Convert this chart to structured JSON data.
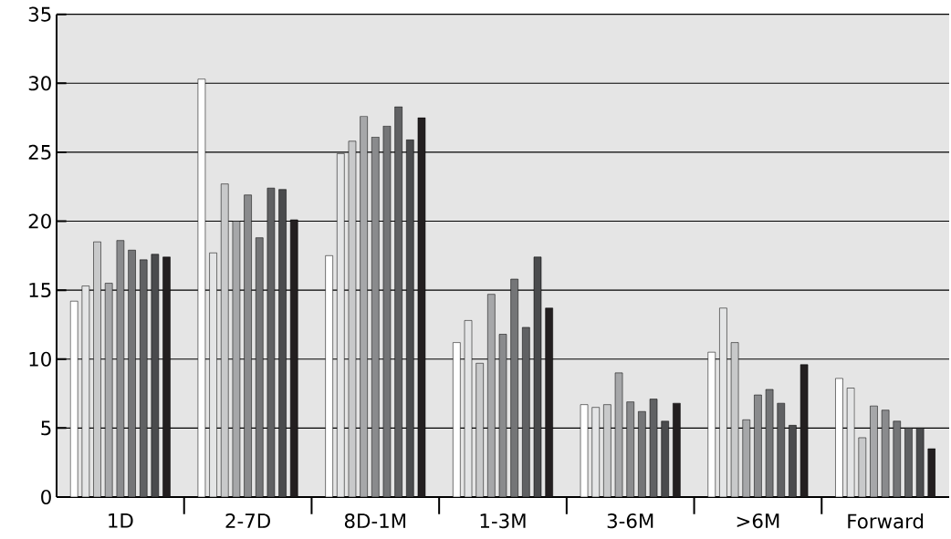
{
  "chart_data": {
    "type": "bar",
    "categories": [
      "1D",
      "2-7D",
      "8D-1M",
      "1-3M",
      "3-6M",
      ">6M",
      "Forward"
    ],
    "ylim": [
      0,
      35
    ],
    "yticks": [
      0,
      5,
      10,
      15,
      20,
      25,
      30,
      35
    ],
    "grid": "y",
    "series": [
      {
        "color": "#ffffff",
        "values": [
          14.2,
          30.3,
          17.5,
          11.2,
          6.7,
          10.5,
          8.6
        ]
      },
      {
        "color": "#e4e5e6",
        "values": [
          15.3,
          17.7,
          24.9,
          12.8,
          6.5,
          13.7,
          7.9
        ]
      },
      {
        "color": "#c8c9ca",
        "values": [
          18.5,
          22.7,
          25.8,
          9.7,
          6.7,
          11.2,
          4.3
        ]
      },
      {
        "color": "#a6a7a9",
        "values": [
          15.5,
          20.0,
          27.6,
          14.7,
          9.0,
          5.6,
          6.6
        ]
      },
      {
        "color": "#8a8b8d",
        "values": [
          18.6,
          21.9,
          26.1,
          11.8,
          6.9,
          7.4,
          6.3
        ]
      },
      {
        "color": "#747577",
        "values": [
          17.9,
          18.8,
          26.9,
          15.8,
          6.2,
          7.8,
          5.5
        ]
      },
      {
        "color": "#606163",
        "values": [
          17.2,
          22.4,
          28.3,
          12.3,
          7.1,
          6.8,
          5.0
        ]
      },
      {
        "color": "#4a4b4d",
        "values": [
          17.6,
          22.3,
          25.9,
          17.4,
          5.5,
          5.2,
          5.0
        ]
      },
      {
        "color": "#231f20",
        "values": [
          17.4,
          20.1,
          27.5,
          13.7,
          6.8,
          9.6,
          3.5
        ]
      }
    ]
  }
}
